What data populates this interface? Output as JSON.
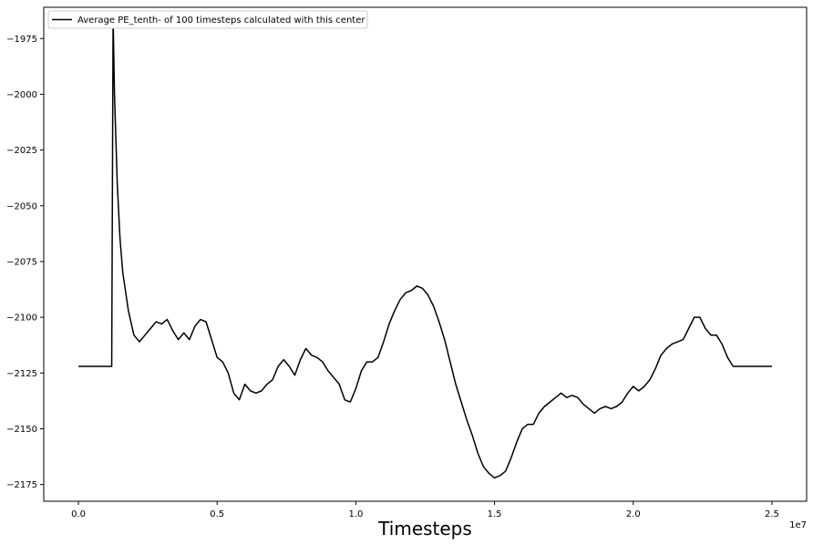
{
  "chart_data": {
    "type": "line",
    "title": "",
    "xlabel": "Timesteps",
    "ylabel": "",
    "x_multiplier_label": "1e7",
    "xlim": [
      -0.125,
      2.625
    ],
    "ylim": [
      -2182.5,
      -1961
    ],
    "x_ticks": [
      0.0,
      0.5,
      1.0,
      1.5,
      2.0,
      2.5
    ],
    "x_tick_labels": [
      "0.0",
      "0.5",
      "1.0",
      "1.5",
      "2.0",
      "2.5"
    ],
    "y_ticks": [
      -1975,
      -2000,
      -2025,
      -2050,
      -2075,
      -2100,
      -2125,
      -2150,
      -2175
    ],
    "y_tick_labels": [
      "−1975",
      "−2000",
      "−2025",
      "−2050",
      "−2075",
      "−2100",
      "−2125",
      "−2150",
      "−2175"
    ],
    "grid": false,
    "legend_position": "top-left",
    "series": [
      {
        "name": "Average PE_tenth- of 100 timesteps calculated with this center",
        "color": "#000000",
        "x": [
          0.0,
          0.05,
          0.1,
          0.12,
          0.125,
          0.13,
          0.14,
          0.15,
          0.16,
          0.18,
          0.2,
          0.22,
          0.24,
          0.26,
          0.28,
          0.3,
          0.32,
          0.34,
          0.36,
          0.38,
          0.4,
          0.42,
          0.44,
          0.46,
          0.48,
          0.5,
          0.52,
          0.54,
          0.56,
          0.58,
          0.6,
          0.62,
          0.64,
          0.66,
          0.68,
          0.7,
          0.72,
          0.74,
          0.76,
          0.78,
          0.8,
          0.82,
          0.84,
          0.86,
          0.88,
          0.9,
          0.92,
          0.94,
          0.96,
          0.98,
          1.0,
          1.02,
          1.04,
          1.06,
          1.08,
          1.1,
          1.12,
          1.14,
          1.16,
          1.18,
          1.2,
          1.22,
          1.24,
          1.26,
          1.28,
          1.3,
          1.32,
          1.34,
          1.36,
          1.38,
          1.4,
          1.42,
          1.44,
          1.46,
          1.48,
          1.5,
          1.52,
          1.54,
          1.56,
          1.58,
          1.6,
          1.62,
          1.64,
          1.66,
          1.68,
          1.7,
          1.72,
          1.74,
          1.76,
          1.78,
          1.8,
          1.82,
          1.84,
          1.86,
          1.88,
          1.9,
          1.92,
          1.94,
          1.96,
          1.98,
          2.0,
          2.02,
          2.04,
          2.06,
          2.08,
          2.1,
          2.12,
          2.14,
          2.16,
          2.18,
          2.2,
          2.22,
          2.24,
          2.26,
          2.28,
          2.3,
          2.32,
          2.34,
          2.36,
          2.38,
          2.4,
          2.45,
          2.5
        ],
        "y": [
          -2122,
          -2122,
          -2122,
          -2122,
          -1965,
          -2000,
          -2040,
          -2065,
          -2080,
          -2097,
          -2108,
          -2111,
          -2108,
          -2105,
          -2102,
          -2103,
          -2101,
          -2106,
          -2110,
          -2107,
          -2110,
          -2104,
          -2101,
          -2102,
          -2110,
          -2118,
          -2120,
          -2125,
          -2134,
          -2137,
          -2130,
          -2133,
          -2134,
          -2133,
          -2130,
          -2128,
          -2122,
          -2119,
          -2122,
          -2126,
          -2119,
          -2114,
          -2117,
          -2118,
          -2120,
          -2124,
          -2127,
          -2130,
          -2137,
          -2138,
          -2132,
          -2124,
          -2120,
          -2120,
          -2118,
          -2111,
          -2103,
          -2097,
          -2092,
          -2089,
          -2088,
          -2086,
          -2087,
          -2090,
          -2095,
          -2102,
          -2110,
          -2120,
          -2130,
          -2138,
          -2146,
          -2153,
          -2161,
          -2167,
          -2170,
          -2172,
          -2171,
          -2169,
          -2163,
          -2156,
          -2150,
          -2148,
          -2148,
          -2143,
          -2140,
          -2138,
          -2136,
          -2134,
          -2136,
          -2135,
          -2136,
          -2139,
          -2141,
          -2143,
          -2141,
          -2140,
          -2141,
          -2140,
          -2138,
          -2134,
          -2131,
          -2133,
          -2131,
          -2128,
          -2123,
          -2117,
          -2114,
          -2112,
          -2111,
          -2110,
          -2105,
          -2100,
          -2100,
          -2105,
          -2108,
          -2108,
          -2112,
          -2118,
          -2122,
          -2122,
          -2122,
          -2122,
          -2122
        ]
      }
    ]
  }
}
